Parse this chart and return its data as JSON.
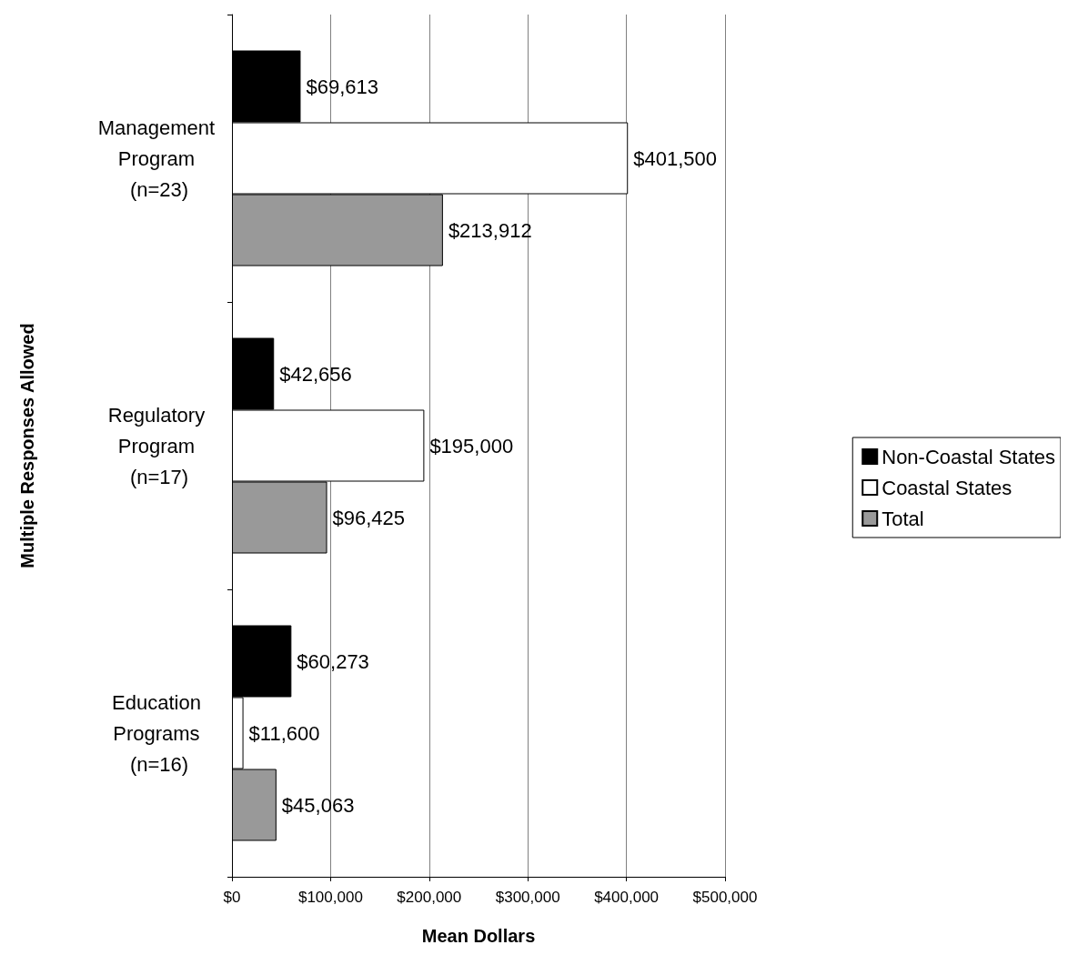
{
  "chart_data": {
    "type": "bar",
    "orientation": "horizontal",
    "xlabel": "Mean Dollars",
    "ylabel": "Multiple Responses Allowed",
    "categories": [
      "Management Program (n=23)",
      "Regulatory Program (n=17)",
      "Education Programs (n=16)"
    ],
    "series": [
      {
        "name": "Non-Coastal States",
        "color": "#000000",
        "values": [
          69613,
          42656,
          60273
        ],
        "value_labels": [
          "$69,613",
          "$42,656",
          "$60,273"
        ]
      },
      {
        "name": "Coastal States",
        "color": "#ffffff",
        "values": [
          401500,
          195000,
          11600
        ],
        "value_labels": [
          "$401,500",
          "$195,000",
          "$11,600"
        ]
      },
      {
        "name": "Total",
        "color": "#999999",
        "values": [
          213912,
          96425,
          45063
        ],
        "value_labels": [
          "$213,912",
          "$96,425",
          "$45,063"
        ]
      }
    ],
    "xlim": [
      0,
      500000
    ],
    "xticks": [
      {
        "value": 0,
        "label": "$0"
      },
      {
        "value": 100000,
        "label": "$100,000"
      },
      {
        "value": 200000,
        "label": "$200,000"
      },
      {
        "value": 300000,
        "label": "$300,000"
      },
      {
        "value": 400000,
        "label": "$400,000"
      },
      {
        "value": 500000,
        "label": "$500,000"
      }
    ],
    "grid": "x",
    "legend": "right"
  }
}
